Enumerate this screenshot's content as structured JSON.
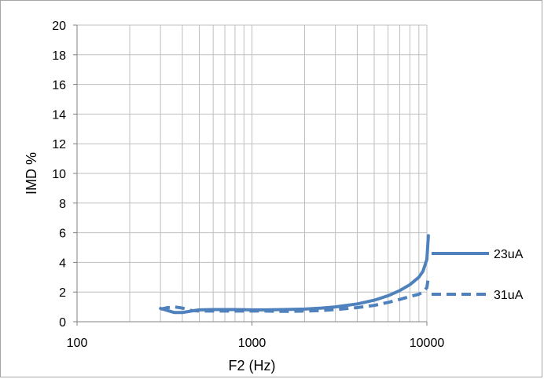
{
  "chart_data": {
    "type": "line",
    "title": "",
    "xlabel": "F2 (Hz)",
    "ylabel": "IMD %",
    "x_scale": "log",
    "xlim": [
      100,
      10000
    ],
    "ylim": [
      0,
      20
    ],
    "x_ticks": [
      100,
      1000,
      10000
    ],
    "x_tick_labels": [
      "100",
      "1000",
      "10000"
    ],
    "y_ticks": [
      0,
      2,
      4,
      6,
      8,
      10,
      12,
      14,
      16,
      18,
      20
    ],
    "y_tick_labels": [
      "0",
      "2",
      "4",
      "6",
      "8",
      "10",
      "12",
      "14",
      "16",
      "18",
      "20"
    ],
    "grid": true,
    "legend_position": "right",
    "series_color": "#4f81bd",
    "series": [
      {
        "name": "23uA",
        "style": "solid",
        "x": [
          300,
          330,
          360,
          400,
          450,
          500,
          600,
          700,
          800,
          1000,
          1200,
          1500,
          2000,
          2500,
          3000,
          4000,
          5000,
          6000,
          7000,
          8000,
          9000,
          9500,
          10000,
          10200
        ],
        "y": [
          0.9,
          0.75,
          0.62,
          0.62,
          0.72,
          0.8,
          0.82,
          0.82,
          0.82,
          0.8,
          0.8,
          0.82,
          0.85,
          0.92,
          1.0,
          1.2,
          1.45,
          1.75,
          2.1,
          2.5,
          3.0,
          3.4,
          4.2,
          5.8
        ]
      },
      {
        "name": "31uA",
        "style": "dashed",
        "x": [
          300,
          330,
          360,
          400,
          450,
          500,
          600,
          700,
          800,
          1000,
          1200,
          1500,
          2000,
          2500,
          3000,
          4000,
          5000,
          6000,
          7000,
          8000,
          9000,
          9500,
          10000,
          10200
        ],
        "y": [
          0.85,
          0.95,
          1.0,
          0.92,
          0.75,
          0.72,
          0.72,
          0.72,
          0.72,
          0.72,
          0.72,
          0.7,
          0.72,
          0.75,
          0.82,
          0.95,
          1.1,
          1.3,
          1.5,
          1.7,
          1.85,
          2.0,
          2.3,
          3.0
        ]
      }
    ]
  }
}
